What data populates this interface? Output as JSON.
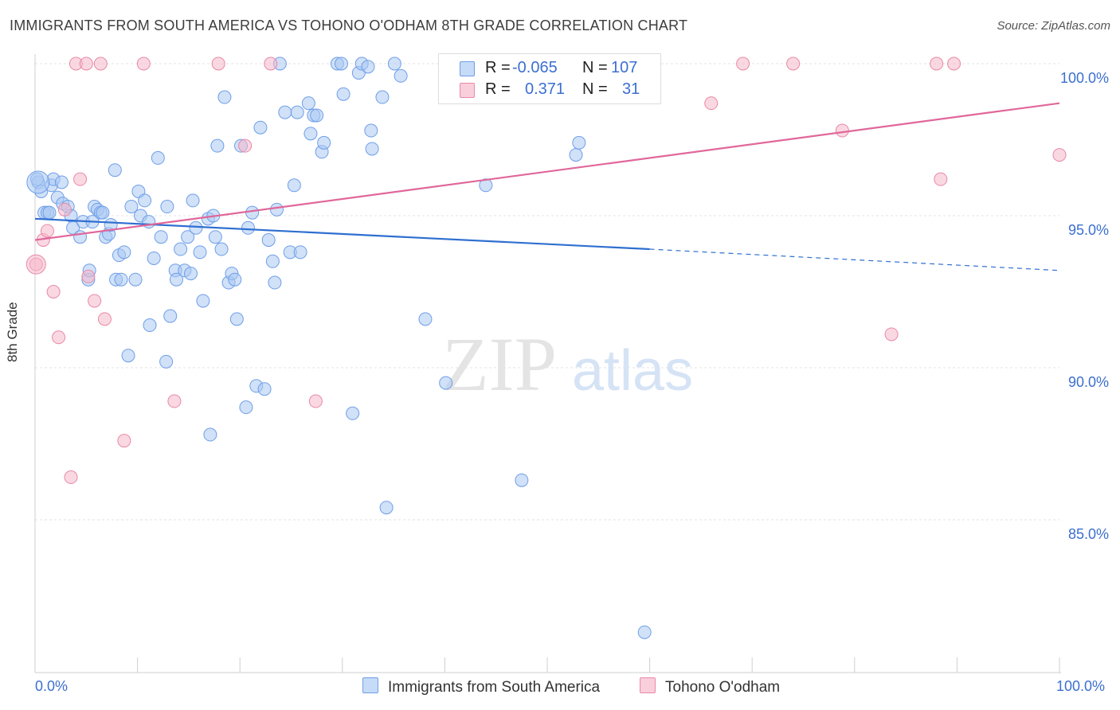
{
  "title": "IMMIGRANTS FROM SOUTH AMERICA VS TOHONO O'ODHAM 8TH GRADE CORRELATION CHART",
  "source": "Source: ZipAtlas.com",
  "watermark": {
    "zip": "ZIP",
    "atlas": "atlas"
  },
  "stats": {
    "rows": [
      {
        "r_label": "R =",
        "r_value": "-0.065",
        "n_label": "N =",
        "n_value": "107",
        "color": "#a9c8f2"
      },
      {
        "r_label": "R =",
        "r_value": "0.371",
        "n_label": "N =",
        "n_value": "31",
        "color": "#f5b8cb"
      }
    ]
  },
  "legend": {
    "items": [
      {
        "label": "Immigrants from South America",
        "color": "#a9c8f2"
      },
      {
        "label": "Tohono O'odham",
        "color": "#f5b8cb"
      }
    ]
  },
  "chart_data": {
    "type": "scatter",
    "xlabel": "",
    "ylabel": "8th Grade",
    "xlim": [
      0,
      100
    ],
    "ylim": [
      80.6,
      100.5
    ],
    "x_tick_labels": [
      "0.0%",
      "100.0%"
    ],
    "y_ticks": [
      85,
      90,
      95,
      100
    ],
    "y_tick_labels": [
      "85.0%",
      "90.0%",
      "95.0%",
      "100.0%"
    ],
    "grid": true,
    "series": [
      {
        "name": "Immigrants from South America",
        "color": "#6f9ee8",
        "fill": "#a9c8f2",
        "trend": {
          "x0": 0,
          "y0": 94.9,
          "x1": 60,
          "y1": 93.9,
          "dashed_to": 100,
          "dashed_y": 93.2
        },
        "points": [
          [
            0.3,
            96.1
          ],
          [
            0.6,
            95.8
          ],
          [
            0.9,
            95.1
          ],
          [
            1.2,
            95.1
          ],
          [
            1.6,
            96.0
          ],
          [
            1.8,
            96.2
          ],
          [
            2.2,
            95.6
          ],
          [
            2.6,
            96.1
          ],
          [
            2.7,
            95.4
          ],
          [
            3.2,
            95.3
          ],
          [
            3.5,
            95.0
          ],
          [
            3.7,
            94.6
          ],
          [
            4.4,
            94.3
          ],
          [
            4.7,
            94.8
          ],
          [
            5.2,
            92.9
          ],
          [
            5.3,
            93.2
          ],
          [
            5.6,
            94.8
          ],
          [
            5.8,
            95.3
          ],
          [
            6.1,
            95.2
          ],
          [
            6.4,
            95.1
          ],
          [
            6.9,
            94.3
          ],
          [
            7.2,
            94.4
          ],
          [
            7.4,
            94.7
          ],
          [
            7.8,
            96.5
          ],
          [
            7.9,
            92.9
          ],
          [
            8.2,
            93.7
          ],
          [
            8.4,
            92.9
          ],
          [
            8.7,
            93.8
          ],
          [
            9.1,
            90.4
          ],
          [
            9.4,
            95.3
          ],
          [
            9.8,
            92.9
          ],
          [
            10.1,
            95.8
          ],
          [
            10.3,
            95.0
          ],
          [
            10.7,
            95.5
          ],
          [
            11.1,
            94.8
          ],
          [
            11.2,
            91.4
          ],
          [
            11.6,
            93.6
          ],
          [
            12.0,
            96.9
          ],
          [
            12.3,
            94.3
          ],
          [
            12.8,
            90.2
          ],
          [
            12.9,
            95.3
          ],
          [
            13.2,
            91.7
          ],
          [
            13.7,
            93.2
          ],
          [
            13.8,
            92.9
          ],
          [
            14.2,
            93.9
          ],
          [
            14.6,
            93.2
          ],
          [
            14.9,
            94.3
          ],
          [
            15.2,
            93.1
          ],
          [
            15.4,
            95.5
          ],
          [
            15.7,
            94.6
          ],
          [
            16.1,
            93.8
          ],
          [
            16.4,
            92.2
          ],
          [
            16.9,
            94.9
          ],
          [
            17.1,
            87.8
          ],
          [
            17.4,
            95.0
          ],
          [
            17.6,
            94.3
          ],
          [
            17.8,
            97.3
          ],
          [
            18.2,
            93.9
          ],
          [
            18.5,
            98.9
          ],
          [
            18.9,
            92.8
          ],
          [
            19.2,
            93.1
          ],
          [
            19.5,
            92.9
          ],
          [
            19.7,
            91.6
          ],
          [
            20.1,
            97.3
          ],
          [
            20.6,
            88.7
          ],
          [
            20.8,
            94.6
          ],
          [
            21.2,
            95.1
          ],
          [
            21.6,
            89.4
          ],
          [
            22.0,
            97.9
          ],
          [
            22.4,
            89.3
          ],
          [
            22.8,
            94.2
          ],
          [
            23.2,
            93.5
          ],
          [
            23.4,
            92.8
          ],
          [
            23.6,
            95.2
          ],
          [
            23.9,
            100.0
          ],
          [
            24.4,
            98.4
          ],
          [
            24.9,
            93.8
          ],
          [
            25.3,
            96.0
          ],
          [
            25.6,
            98.4
          ],
          [
            25.9,
            93.8
          ],
          [
            26.7,
            98.7
          ],
          [
            26.9,
            97.7
          ],
          [
            27.2,
            98.3
          ],
          [
            27.5,
            98.3
          ],
          [
            28.0,
            97.1
          ],
          [
            28.2,
            97.4
          ],
          [
            30.1,
            99.0
          ],
          [
            29.5,
            100.0
          ],
          [
            29.9,
            100.0
          ],
          [
            31.0,
            88.5
          ],
          [
            31.6,
            99.7
          ],
          [
            31.9,
            100.0
          ],
          [
            32.5,
            99.9
          ],
          [
            32.8,
            97.8
          ],
          [
            32.9,
            97.2
          ],
          [
            33.9,
            98.9
          ],
          [
            34.3,
            85.4
          ],
          [
            35.1,
            100.0
          ],
          [
            35.7,
            99.6
          ],
          [
            38.1,
            91.6
          ],
          [
            40.1,
            89.5
          ],
          [
            44.0,
            96.0
          ],
          [
            47.5,
            86.3
          ],
          [
            52.8,
            97.0
          ],
          [
            53.1,
            97.4
          ],
          [
            59.5,
            81.3
          ],
          [
            0.2,
            96.2
          ],
          [
            1.4,
            95.1
          ],
          [
            6.6,
            95.1
          ]
        ]
      },
      {
        "name": "Tohono O'odham",
        "color": "#e889a8",
        "fill": "#f5b8cb",
        "trend": {
          "x0": 0,
          "y0": 94.2,
          "x1": 100,
          "y1": 98.7
        },
        "points": [
          [
            0.1,
            93.4
          ],
          [
            0.8,
            94.2
          ],
          [
            1.2,
            94.5
          ],
          [
            1.8,
            92.5
          ],
          [
            2.3,
            91.0
          ],
          [
            2.9,
            95.2
          ],
          [
            3.5,
            86.4
          ],
          [
            4.0,
            100.0
          ],
          [
            4.4,
            96.2
          ],
          [
            5.0,
            100.0
          ],
          [
            5.2,
            93.0
          ],
          [
            5.8,
            92.2
          ],
          [
            6.4,
            100.0
          ],
          [
            6.8,
            91.6
          ],
          [
            8.7,
            87.6
          ],
          [
            10.6,
            100.0
          ],
          [
            13.6,
            88.9
          ],
          [
            17.9,
            100.0
          ],
          [
            20.5,
            97.3
          ],
          [
            23.0,
            100.0
          ],
          [
            27.4,
            88.9
          ],
          [
            47.2,
            100.0
          ],
          [
            66.0,
            98.7
          ],
          [
            69.1,
            100.0
          ],
          [
            74.0,
            100.0
          ],
          [
            78.8,
            97.8
          ],
          [
            83.6,
            91.1
          ],
          [
            88.0,
            100.0
          ],
          [
            88.4,
            96.2
          ],
          [
            89.7,
            100.0
          ],
          [
            100.0,
            97.0
          ]
        ]
      }
    ]
  }
}
